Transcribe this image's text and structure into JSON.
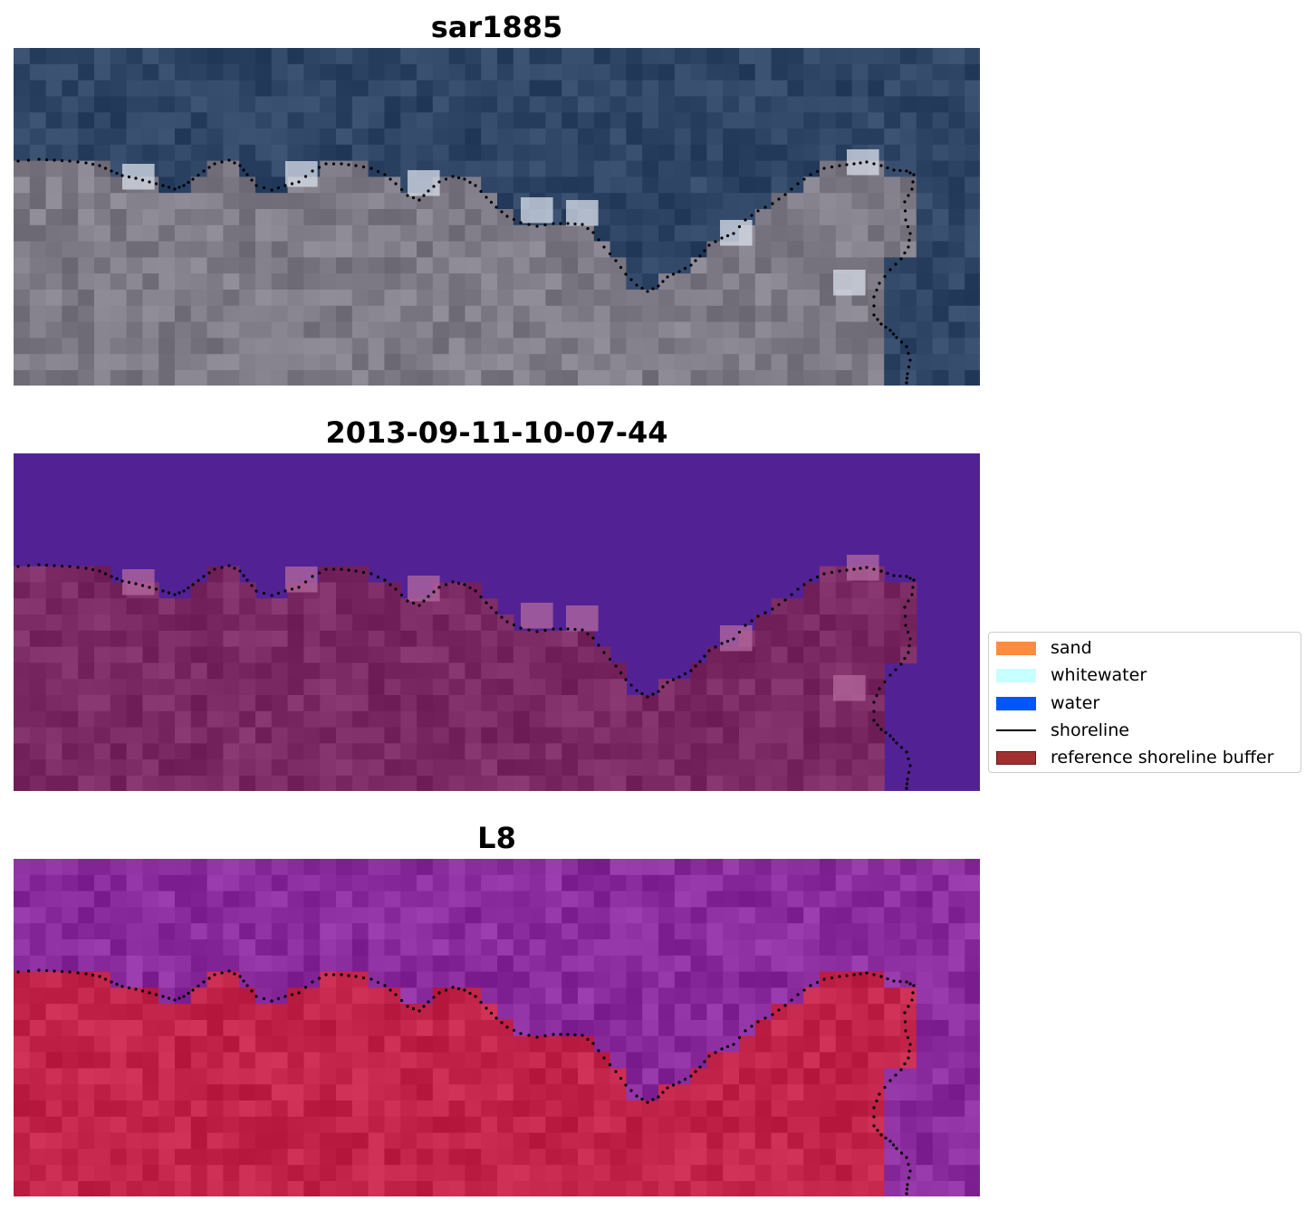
{
  "panels": [
    {
      "title": "sar1885",
      "kind": "rgb"
    },
    {
      "title": "2013-09-11-10-07-44",
      "kind": "classified"
    },
    {
      "title": "L8",
      "kind": "index"
    }
  ],
  "legend": {
    "items": [
      {
        "label": "sand",
        "color": "#ff8c3c",
        "kind": "patch"
      },
      {
        "label": "whitewater",
        "color": "#c8ffff",
        "kind": "patch"
      },
      {
        "label": "water",
        "color": "#0055ff",
        "kind": "patch"
      },
      {
        "label": "shoreline",
        "color": "#000000",
        "kind": "line"
      },
      {
        "label": "reference shoreline buffer",
        "color": "#a03030",
        "kind": "patch"
      }
    ]
  },
  "colors": {
    "water_rgb": "#2f4566",
    "land_rgb": "#7e7a86",
    "water_class": "#522294",
    "land_class": "#7c2a64",
    "water_index": "#8a2c9e",
    "land_index": "#c2244a"
  }
}
